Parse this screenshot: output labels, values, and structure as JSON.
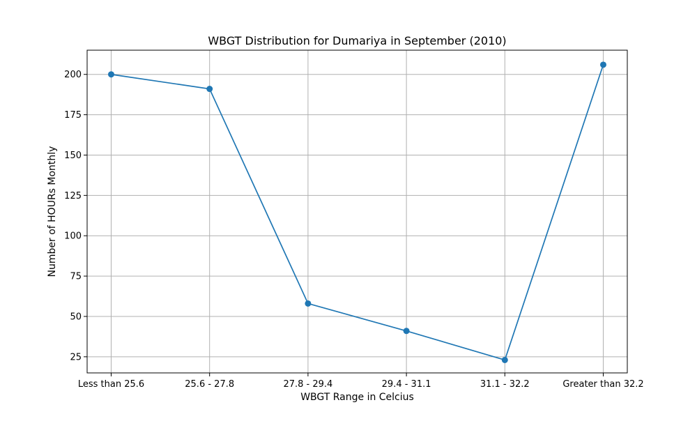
{
  "chart_data": {
    "type": "line",
    "title": "WBGT Distribution for Dumariya in September (2010)",
    "xlabel": "WBGT Range in Celcius",
    "ylabel": "Number of HOURs Monthly",
    "categories": [
      "Less than 25.6",
      "25.6 - 27.8",
      "27.8 - 29.4",
      "29.4 - 31.1",
      "31.1 - 32.2",
      "Greater than 32.2"
    ],
    "series": [
      {
        "values": [
          200,
          191,
          58,
          41,
          23,
          206
        ],
        "color": "#1f77b4",
        "marker": "circle"
      }
    ],
    "yticks": [
      25,
      50,
      75,
      100,
      125,
      150,
      175,
      200
    ],
    "ylim": [
      15,
      215
    ],
    "grid": true,
    "legend": false
  }
}
